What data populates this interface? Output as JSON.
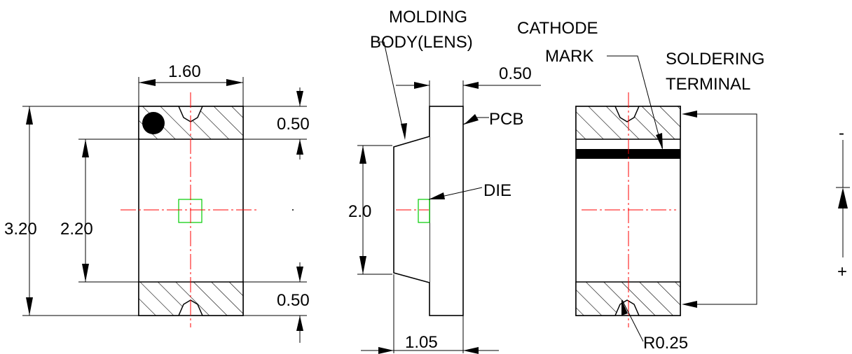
{
  "labels": {
    "dim_width": "1.60",
    "dim_height_total": "3.20",
    "dim_height_inner": "2.20",
    "dim_terminal_top": "0.50",
    "dim_terminal_bottom": "0.50",
    "molding_line1": "MOLDING",
    "molding_line2": "BODY(LENS)",
    "dim_pcb_thickness": "0.50",
    "pcb": "PCB",
    "die": "DIE",
    "dim_lens_height": "2.0",
    "dim_total_depth": "1.05",
    "cathode_line1": "CATHODE",
    "cathode_line2": "MARK",
    "soldering_line1": "SOLDERING",
    "soldering_line2": "TERMINAL",
    "radius": "R0.25",
    "polarity_minus": "-",
    "polarity_plus": "+"
  },
  "colors": {
    "outline": "#000000",
    "centerline": "#ff0000",
    "die": "#00cc00",
    "background": "#ffffff"
  }
}
